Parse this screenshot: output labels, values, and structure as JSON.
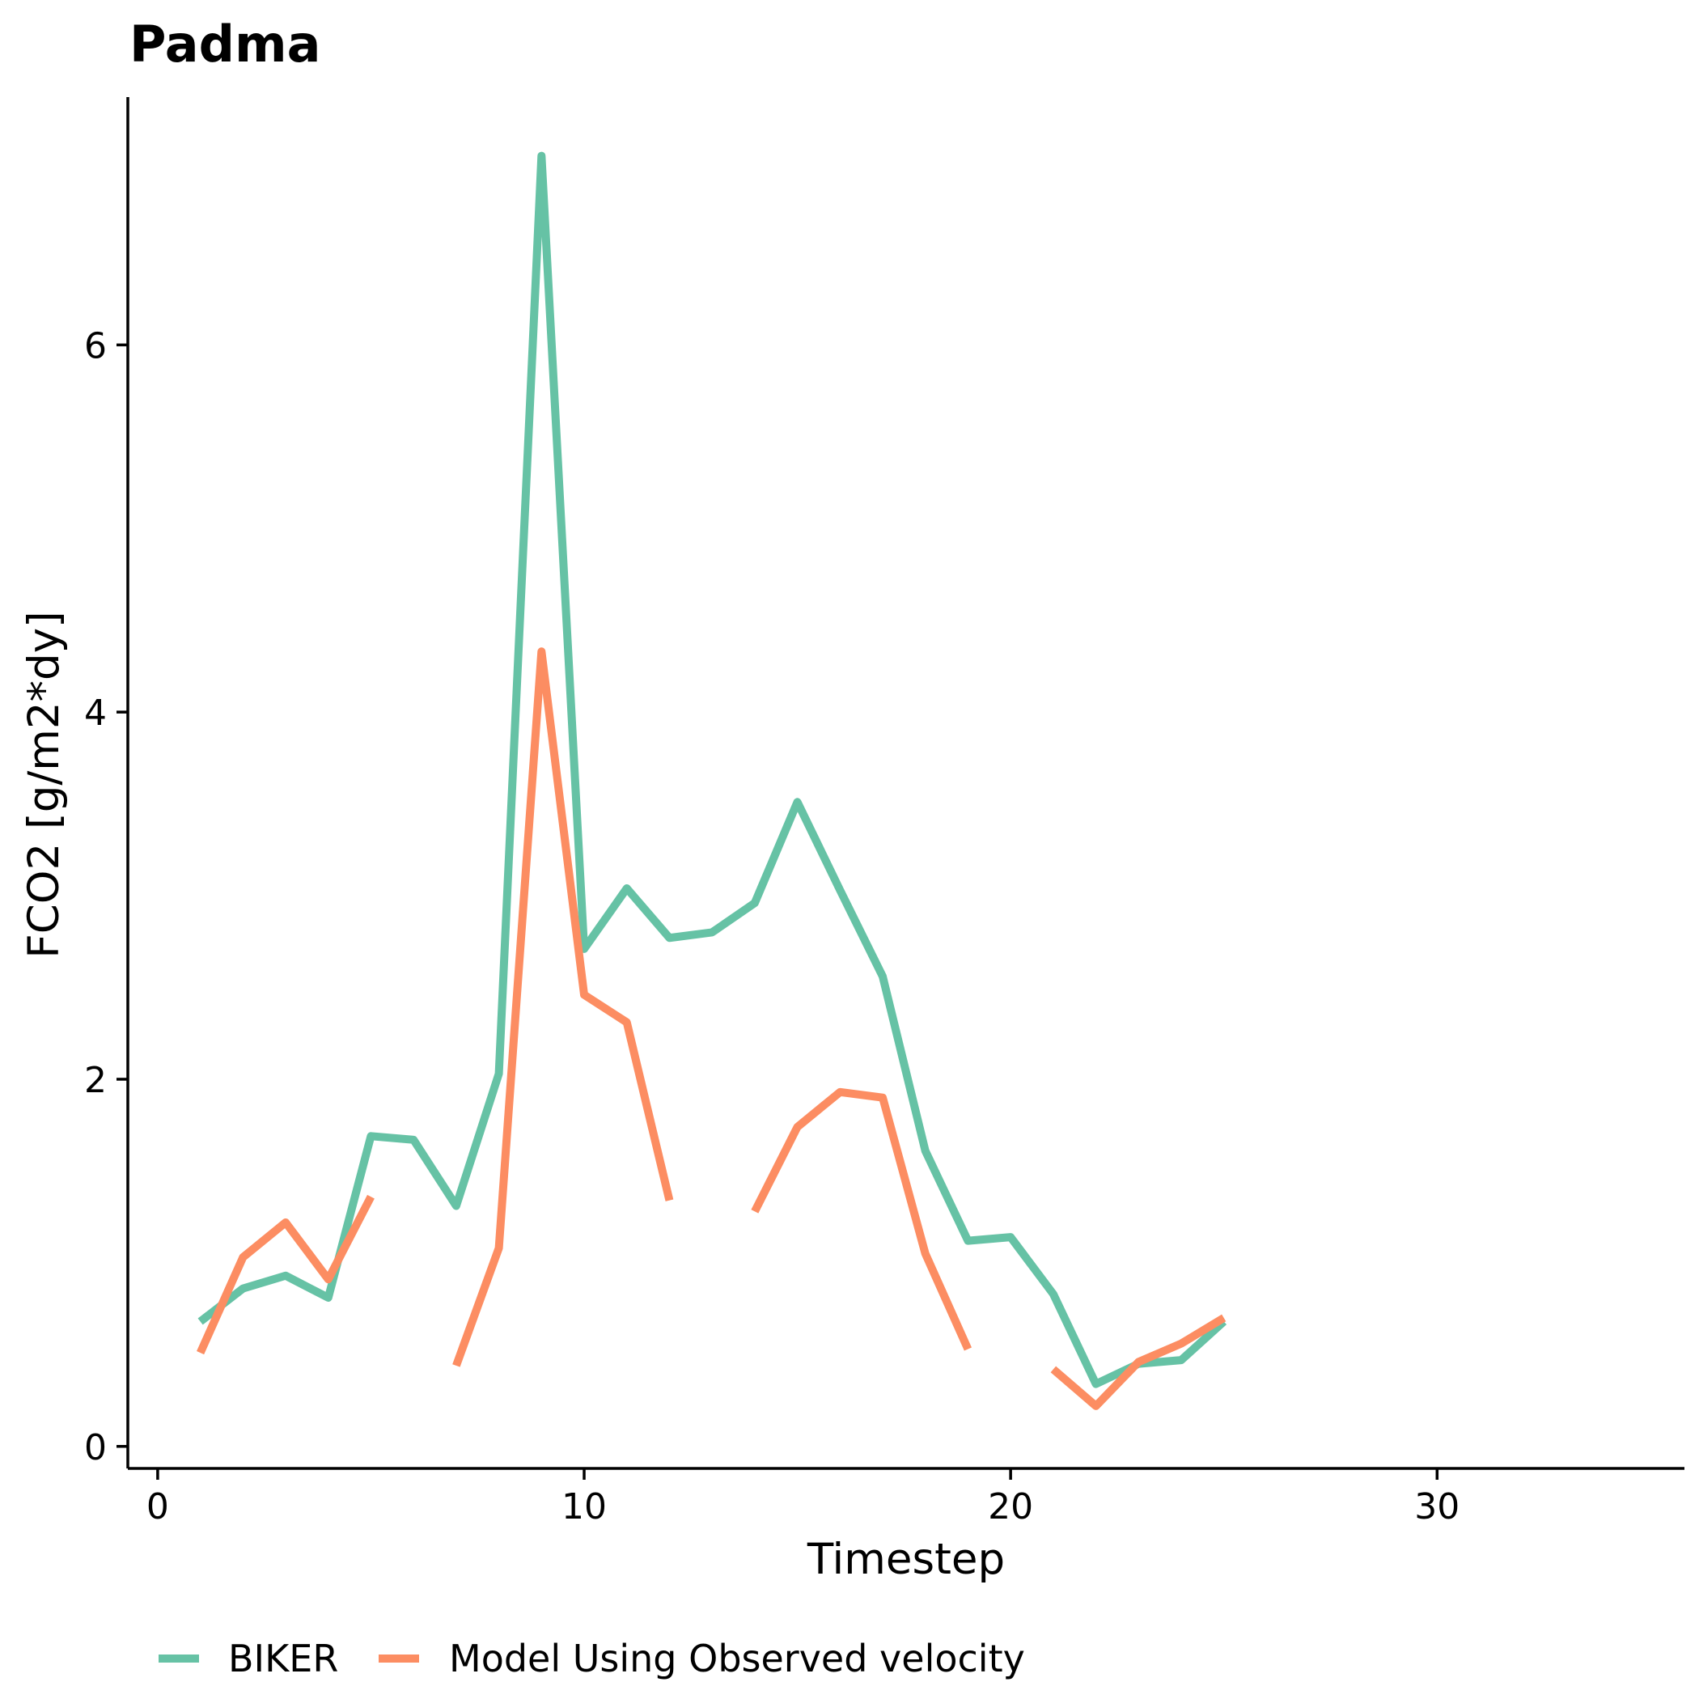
{
  "chart_data": {
    "type": "line",
    "title": "Padma",
    "xlabel": "Timestep",
    "ylabel": "FCO2 [g/m2*dy]",
    "xlim": [
      -0.7,
      35.8
    ],
    "ylim": [
      -0.12,
      7.35
    ],
    "xticks": [
      0,
      10,
      20,
      30
    ],
    "yticks": [
      0,
      2,
      4,
      6
    ],
    "legend_position": "bottom-left",
    "series": [
      {
        "name": "BIKER",
        "color": "#66c2a5",
        "x": [
          1,
          2,
          3,
          4,
          5,
          6,
          7,
          8,
          9,
          10,
          11,
          12,
          13,
          14,
          15,
          16,
          17,
          18,
          19,
          20,
          21,
          22,
          23,
          24,
          25
        ],
        "y": [
          0.68,
          0.86,
          0.93,
          0.81,
          1.69,
          1.67,
          1.31,
          2.03,
          7.03,
          2.71,
          3.04,
          2.77,
          2.8,
          2.96,
          3.51,
          3.03,
          2.56,
          1.61,
          1.12,
          1.14,
          0.83,
          0.34,
          0.45,
          0.47,
          0.68
        ]
      },
      {
        "name": "Model Using Observed velocity",
        "color": "#fc8d62",
        "x": [
          1,
          2,
          3,
          4,
          5,
          6,
          7,
          8,
          9,
          10,
          11,
          12,
          13,
          14,
          15,
          16,
          17,
          18,
          19,
          20,
          21,
          22,
          23,
          24,
          25
        ],
        "y": [
          0.51,
          1.03,
          1.22,
          0.91,
          1.36,
          null,
          0.44,
          1.08,
          4.33,
          2.46,
          2.31,
          1.34,
          null,
          1.28,
          1.74,
          1.93,
          1.9,
          1.05,
          0.53,
          null,
          0.42,
          0.22,
          0.46,
          0.56,
          0.7
        ]
      }
    ]
  }
}
